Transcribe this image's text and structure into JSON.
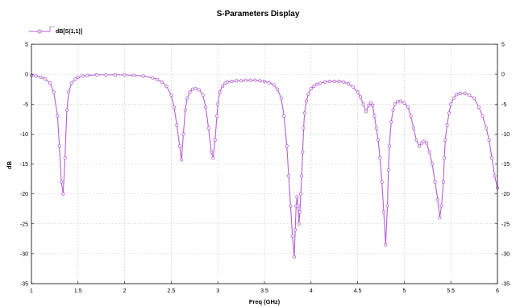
{
  "chart_data": {
    "type": "line",
    "title": "S-Parameters Display",
    "xlabel": "Freq (GHz)",
    "ylabel": "dB",
    "xlim": [
      1,
      6
    ],
    "ylim": [
      -35,
      5
    ],
    "xticks": [
      "1",
      "1.5",
      "2",
      "2.5",
      "3",
      "3.5",
      "4",
      "4.5",
      "5",
      "5.5",
      "6"
    ],
    "yticks": [
      "5",
      "0",
      "-5",
      "-10",
      "-15",
      "-20",
      "-25",
      "-30",
      "-35"
    ],
    "grid": true,
    "legend_position": "top-left",
    "series": [
      {
        "name": "dB[S(1,1)]",
        "color": "#b45fd2",
        "x": [
          1.0,
          1.05,
          1.1,
          1.15,
          1.2,
          1.24,
          1.28,
          1.3,
          1.32,
          1.34,
          1.36,
          1.38,
          1.4,
          1.43,
          1.47,
          1.5,
          1.55,
          1.6,
          1.7,
          1.8,
          1.9,
          2.0,
          2.1,
          2.2,
          2.3,
          2.35,
          2.4,
          2.45,
          2.5,
          2.53,
          2.56,
          2.59,
          2.61,
          2.63,
          2.65,
          2.67,
          2.7,
          2.73,
          2.76,
          2.8,
          2.84,
          2.87,
          2.9,
          2.93,
          2.95,
          2.97,
          2.99,
          3.0,
          3.02,
          3.05,
          3.08,
          3.1,
          3.15,
          3.2,
          3.25,
          3.3,
          3.35,
          3.4,
          3.45,
          3.5,
          3.55,
          3.6,
          3.64,
          3.68,
          3.71,
          3.74,
          3.76,
          3.78,
          3.8,
          3.82,
          3.83,
          3.84,
          3.85,
          3.86,
          3.87,
          3.88,
          3.89,
          3.9,
          3.91,
          3.92,
          3.93,
          3.95,
          3.97,
          4.0,
          4.03,
          4.06,
          4.1,
          4.15,
          4.2,
          4.25,
          4.3,
          4.35,
          4.4,
          4.45,
          4.5,
          4.53,
          4.56,
          4.59,
          4.62,
          4.64,
          4.66,
          4.68,
          4.7,
          4.72,
          4.74,
          4.76,
          4.78,
          4.8,
          4.82,
          4.83,
          4.84,
          4.86,
          4.88,
          4.9,
          4.93,
          4.96,
          5.0,
          5.04,
          5.07,
          5.1,
          5.13,
          5.16,
          5.19,
          5.21,
          5.24,
          5.27,
          5.3,
          5.33,
          5.36,
          5.38,
          5.4,
          5.42,
          5.43,
          5.44,
          5.46,
          5.48,
          5.5,
          5.53,
          5.56,
          5.6,
          5.65,
          5.7,
          5.75,
          5.8,
          5.84,
          5.88,
          5.91,
          5.94,
          5.97,
          6.0
        ],
        "y": [
          -0.2,
          -0.3,
          -0.5,
          -0.8,
          -1.5,
          -3.0,
          -7.0,
          -12.0,
          -18.0,
          -20.0,
          -14.0,
          -6.0,
          -3.0,
          -1.5,
          -0.8,
          -0.5,
          -0.3,
          -0.2,
          -0.1,
          -0.1,
          -0.1,
          -0.1,
          -0.2,
          -0.3,
          -0.6,
          -0.9,
          -1.3,
          -2.0,
          -3.5,
          -5.5,
          -8.5,
          -12.0,
          -14.3,
          -10.0,
          -6.0,
          -4.0,
          -3.0,
          -2.5,
          -2.4,
          -2.6,
          -3.5,
          -5.5,
          -9.0,
          -13.0,
          -14.0,
          -11.0,
          -7.0,
          -5.0,
          -3.0,
          -2.0,
          -1.5,
          -1.3,
          -1.2,
          -1.1,
          -1.1,
          -1.0,
          -1.0,
          -1.0,
          -1.1,
          -1.2,
          -1.4,
          -1.8,
          -2.5,
          -4.0,
          -7.0,
          -12.0,
          -17.0,
          -22.0,
          -27.0,
          -30.5,
          -26.0,
          -22.0,
          -20.5,
          -22.0,
          -25.0,
          -23.0,
          -20.0,
          -17.0,
          -13.0,
          -9.0,
          -6.5,
          -4.5,
          -3.3,
          -2.4,
          -2.0,
          -1.7,
          -1.5,
          -1.3,
          -1.2,
          -1.2,
          -1.2,
          -1.3,
          -1.6,
          -2.1,
          -3.0,
          -3.8,
          -5.0,
          -6.2,
          -5.2,
          -4.8,
          -5.2,
          -7.0,
          -9.0,
          -11.0,
          -14.0,
          -18.0,
          -23.0,
          -28.5,
          -22.0,
          -16.0,
          -12.0,
          -8.0,
          -6.0,
          -5.0,
          -4.6,
          -4.5,
          -4.8,
          -5.5,
          -7.0,
          -9.0,
          -11.0,
          -12.0,
          -11.5,
          -11.2,
          -11.5,
          -13.0,
          -15.0,
          -18.0,
          -21.0,
          -24.0,
          -22.0,
          -18.0,
          -14.0,
          -11.0,
          -8.5,
          -6.5,
          -5.0,
          -4.0,
          -3.4,
          -3.2,
          -3.2,
          -3.5,
          -4.0,
          -5.5,
          -7.0,
          -9.0,
          -11.0,
          -14.0,
          -17.0,
          -19.0
        ]
      }
    ]
  }
}
